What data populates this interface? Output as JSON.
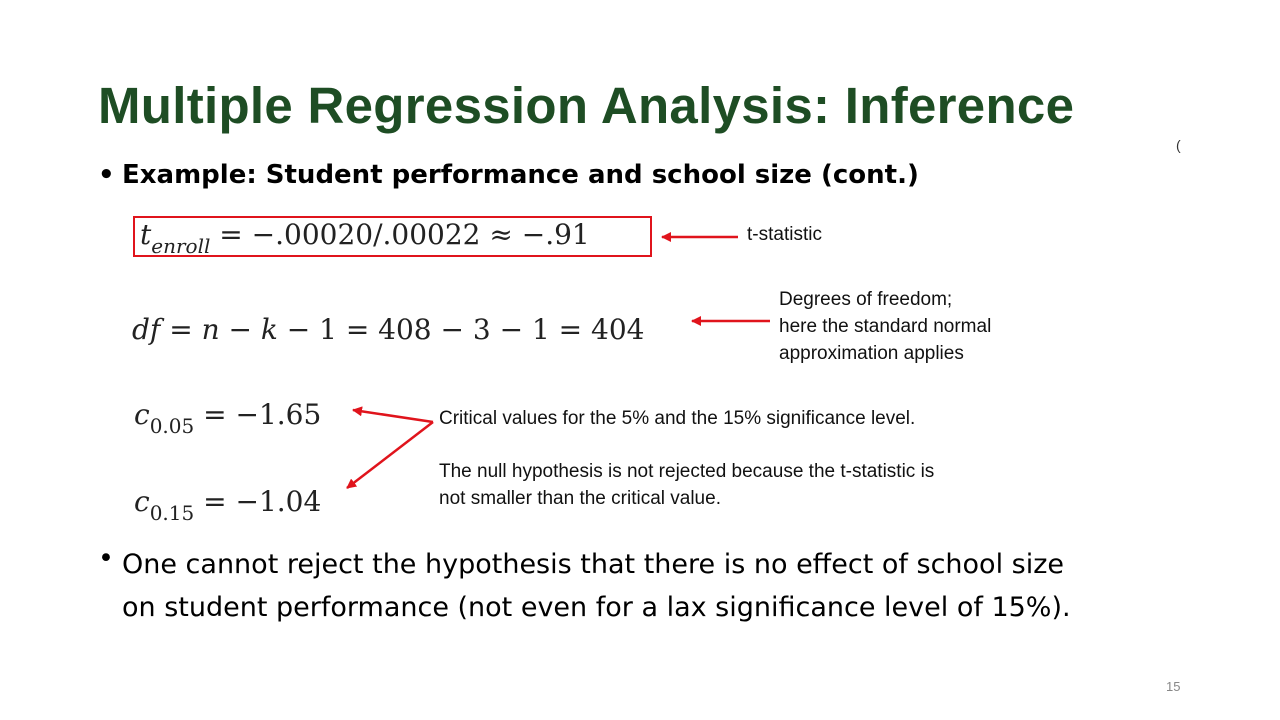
{
  "title": "Multiple Regression Analysis: Inference",
  "title_suffix": "(",
  "bullet_symbol": "•",
  "bullets": [
    "Example: Student performance and school size (cont.)",
    "One cannot reject the hypothesis that there is no effect of school size",
    "on student performance (not even for a lax significance level of 15%)."
  ],
  "equations": {
    "t_stat": {
      "lhs": "t",
      "sub": "enroll",
      "rhs": " = −.00020/.00022 ≈ −.91"
    },
    "df": {
      "lhs": "df",
      "rhs_1": " = ",
      "n": "n",
      "m1": " − ",
      "k": "k",
      "rhs_2": " − 1 = 408 − 3 − 1 = 404"
    },
    "c005": {
      "lhs": "c",
      "sub": "0.05",
      "rhs": " = −1.65"
    },
    "c015": {
      "lhs": "c",
      "sub": "0.15",
      "rhs": " = −1.04"
    }
  },
  "annotations": {
    "t_label": "t-statistic",
    "df_lines": [
      "Degrees of freedom;",
      "here the standard normal",
      "approximation applies"
    ],
    "critical": "Critical values for the 5% and the 15% significance level.",
    "null_lines": [
      "The null hypothesis is not rejected because the t-statistic is",
      "not smaller than the critical value."
    ]
  },
  "colors": {
    "title": "#1e4d24",
    "annotation_red": "#e0141c"
  },
  "page_number": "15"
}
